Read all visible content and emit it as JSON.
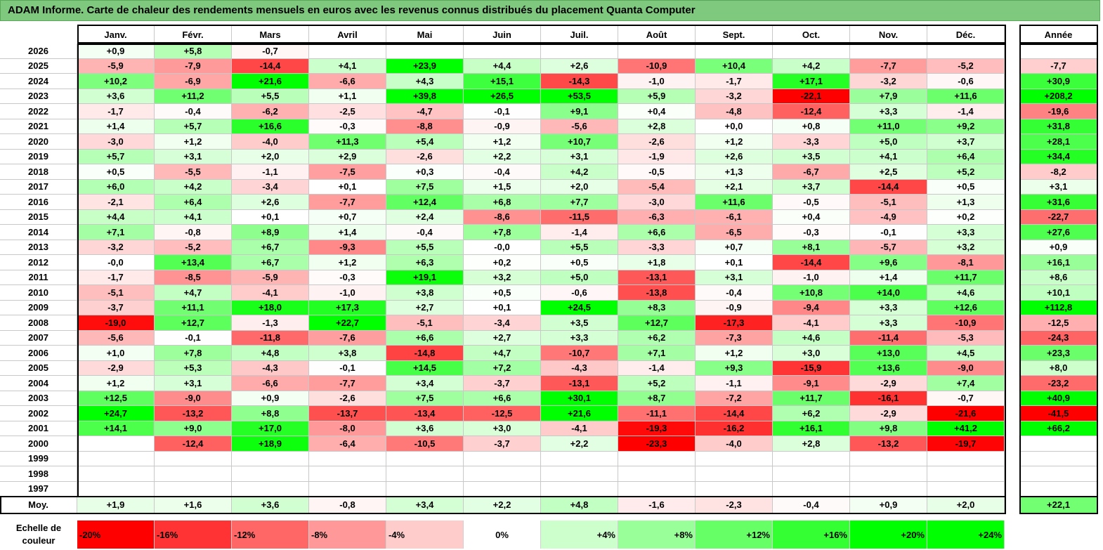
{
  "title": "ADAM Informe. Carte de chaleur des rendements mensuels en euros avec les revenus connus distribués du placement Quanta Computer",
  "chart_data": {
    "type": "heatmap",
    "months": [
      "Janv.",
      "Févr.",
      "Mars",
      "Avril",
      "Mai",
      "Juin",
      "Juil.",
      "Août",
      "Sept.",
      "Oct.",
      "Nov.",
      "Déc."
    ],
    "year_header": "Année",
    "rows": [
      {
        "year": "2026",
        "values": [
          "+0,9",
          "+5,8",
          "-0,7",
          "",
          "",
          "",
          "",
          "",
          "",
          "",
          "",
          ""
        ],
        "annual": ""
      },
      {
        "year": "2025",
        "values": [
          "-5,9",
          "-7,9",
          "-14,4",
          "+4,1",
          "+23,9",
          "+4,4",
          "+2,6",
          "-10,9",
          "+10,4",
          "+4,2",
          "-7,7",
          "-5,2"
        ],
        "annual": "-7,7"
      },
      {
        "year": "2024",
        "values": [
          "+10,2",
          "-6,9",
          "+21,6",
          "-6,6",
          "+4,3",
          "+15,1",
          "-14,3",
          "-1,0",
          "-1,7",
          "+17,1",
          "-3,2",
          "-0,6"
        ],
        "annual": "+30,9"
      },
      {
        "year": "2023",
        "values": [
          "+3,6",
          "+11,2",
          "+5,5",
          "+1,1",
          "+39,8",
          "+26,5",
          "+53,5",
          "+5,9",
          "-3,2",
          "-22,1",
          "+7,9",
          "+11,6"
        ],
        "annual": "+208,2"
      },
      {
        "year": "2022",
        "values": [
          "-1,7",
          "-0,4",
          "-6,2",
          "-2,5",
          "-4,7",
          "-0,1",
          "+9,1",
          "+0,4",
          "-4,8",
          "-12,4",
          "+3,3",
          "-1,4"
        ],
        "annual": "-19,6"
      },
      {
        "year": "2021",
        "values": [
          "+1,4",
          "+5,7",
          "+16,6",
          "-0,3",
          "-8,8",
          "-0,9",
          "-5,6",
          "+2,8",
          "+0,0",
          "+0,8",
          "+11,0",
          "+9,2"
        ],
        "annual": "+31,8"
      },
      {
        "year": "2020",
        "values": [
          "-3,0",
          "+1,2",
          "-4,0",
          "+11,3",
          "+5,4",
          "+1,2",
          "+10,7",
          "-2,6",
          "+1,2",
          "-3,3",
          "+5,0",
          "+3,7"
        ],
        "annual": "+28,1"
      },
      {
        "year": "2019",
        "values": [
          "+5,7",
          "+3,1",
          "+2,0",
          "+2,9",
          "-2,6",
          "+2,2",
          "+3,1",
          "-1,9",
          "+2,6",
          "+3,5",
          "+4,1",
          "+6,4"
        ],
        "annual": "+34,4"
      },
      {
        "year": "2018",
        "values": [
          "+0,5",
          "-5,5",
          "-1,1",
          "-7,5",
          "+0,3",
          "-0,4",
          "+4,2",
          "-0,5",
          "+1,3",
          "-6,7",
          "+2,5",
          "+5,2"
        ],
        "annual": "-8,2"
      },
      {
        "year": "2017",
        "values": [
          "+6,0",
          "+4,2",
          "-3,4",
          "+0,1",
          "+7,5",
          "+1,5",
          "+2,0",
          "-5,4",
          "+2,1",
          "+3,7",
          "-14,4",
          "+0,5"
        ],
        "annual": "+3,1"
      },
      {
        "year": "2016",
        "values": [
          "-2,1",
          "+6,4",
          "+2,6",
          "-7,7",
          "+12,4",
          "+6,8",
          "+7,7",
          "-3,0",
          "+11,6",
          "-0,5",
          "-5,1",
          "+1,3"
        ],
        "annual": "+31,6"
      },
      {
        "year": "2015",
        "values": [
          "+4,4",
          "+4,1",
          "+0,1",
          "+0,7",
          "+2,4",
          "-8,6",
          "-11,5",
          "-6,3",
          "-6,1",
          "+0,4",
          "-4,9",
          "+0,2"
        ],
        "annual": "-22,7"
      },
      {
        "year": "2014",
        "values": [
          "+7,1",
          "-0,8",
          "+8,9",
          "+1,4",
          "-0,4",
          "+7,8",
          "-1,4",
          "+6,6",
          "-6,5",
          "-0,3",
          "-0,1",
          "+3,3"
        ],
        "annual": "+27,6"
      },
      {
        "year": "2013",
        "values": [
          "-3,2",
          "-5,2",
          "+6,7",
          "-9,3",
          "+5,5",
          "-0,0",
          "+5,5",
          "-3,3",
          "+0,7",
          "+8,1",
          "-5,7",
          "+3,2"
        ],
        "annual": "+0,9"
      },
      {
        "year": "2012",
        "values": [
          "-0,0",
          "+13,4",
          "+6,7",
          "+1,2",
          "+6,3",
          "+0,2",
          "+0,5",
          "+1,8",
          "+0,1",
          "-14,4",
          "+9,6",
          "-8,1"
        ],
        "annual": "+16,1"
      },
      {
        "year": "2011",
        "values": [
          "-1,7",
          "-8,5",
          "-5,9",
          "-0,3",
          "+19,1",
          "+3,2",
          "+5,0",
          "-13,1",
          "+3,1",
          "-1,0",
          "+1,4",
          "+11,7"
        ],
        "annual": "+8,6"
      },
      {
        "year": "2010",
        "values": [
          "-5,1",
          "+4,7",
          "-4,1",
          "-1,0",
          "+3,8",
          "+0,5",
          "-0,6",
          "-13,8",
          "-0,4",
          "+10,8",
          "+14,0",
          "+4,6"
        ],
        "annual": "+10,1"
      },
      {
        "year": "2009",
        "values": [
          "-3,7",
          "+11,1",
          "+18,0",
          "+17,3",
          "+2,7",
          "+0,1",
          "+24,5",
          "+8,3",
          "-0,9",
          "-9,4",
          "+3,3",
          "+12,6"
        ],
        "annual": "+112,8"
      },
      {
        "year": "2008",
        "values": [
          "-19,0",
          "+12,7",
          "-1,3",
          "+22,7",
          "-5,1",
          "-3,4",
          "+3,5",
          "+12,7",
          "-17,3",
          "-4,1",
          "+3,3",
          "-10,9"
        ],
        "annual": "-12,5"
      },
      {
        "year": "2007",
        "values": [
          "-5,6",
          "-0,1",
          "-11,8",
          "-7,6",
          "+6,6",
          "+2,7",
          "+3,3",
          "+6,2",
          "-7,3",
          "+4,6",
          "-11,4",
          "-5,3"
        ],
        "annual": "-24,3"
      },
      {
        "year": "2006",
        "values": [
          "+1,0",
          "+7,8",
          "+4,8",
          "+3,8",
          "-14,8",
          "+4,7",
          "-10,7",
          "+7,1",
          "+1,2",
          "+3,0",
          "+13,0",
          "+4,5"
        ],
        "annual": "+23,3"
      },
      {
        "year": "2005",
        "values": [
          "-2,9",
          "+5,3",
          "-4,3",
          "-0,1",
          "+14,5",
          "+7,2",
          "-4,3",
          "-1,4",
          "+9,3",
          "-15,9",
          "+13,6",
          "-9,0"
        ],
        "annual": "+8,0"
      },
      {
        "year": "2004",
        "values": [
          "+1,2",
          "+3,1",
          "-6,6",
          "-7,7",
          "+3,4",
          "-3,7",
          "-13,1",
          "+5,2",
          "-1,1",
          "-9,1",
          "-2,9",
          "+7,4"
        ],
        "annual": "-23,2"
      },
      {
        "year": "2003",
        "values": [
          "+12,5",
          "-9,0",
          "+0,9",
          "-2,6",
          "+7,5",
          "+6,6",
          "+30,1",
          "+8,7",
          "-7,2",
          "+11,7",
          "-16,1",
          "-0,7"
        ],
        "annual": "+40,9"
      },
      {
        "year": "2002",
        "values": [
          "+24,7",
          "-13,2",
          "+8,8",
          "-13,7",
          "-13,4",
          "-12,5",
          "+21,6",
          "-11,1",
          "-14,4",
          "+6,2",
          "-2,9",
          "-21,6"
        ],
        "annual": "-41,5"
      },
      {
        "year": "2001",
        "values": [
          "+14,1",
          "+9,0",
          "+17,0",
          "-8,0",
          "+3,6",
          "+3,0",
          "-4,1",
          "-19,3",
          "-16,2",
          "+16,1",
          "+9,8",
          "+41,2"
        ],
        "annual": "+66,2"
      },
      {
        "year": "2000",
        "values": [
          "",
          "-12,4",
          "+18,9",
          "-6,4",
          "-10,5",
          "-3,7",
          "+2,2",
          "-23,3",
          "-4,0",
          "+2,8",
          "-13,2",
          "-19,7"
        ],
        "annual": ""
      },
      {
        "year": "1999",
        "values": [
          "",
          "",
          "",
          "",
          "",
          "",
          "",
          "",
          "",
          "",
          "",
          ""
        ],
        "annual": ""
      },
      {
        "year": "1998",
        "values": [
          "",
          "",
          "",
          "",
          "",
          "",
          "",
          "",
          "",
          "",
          "",
          ""
        ],
        "annual": ""
      },
      {
        "year": "1997",
        "values": [
          "",
          "",
          "",
          "",
          "",
          "",
          "",
          "",
          "",
          "",
          "",
          ""
        ],
        "annual": ""
      }
    ],
    "average": {
      "label": "Moy.",
      "values": [
        "+1,9",
        "+1,6",
        "+3,6",
        "-0,8",
        "+3,4",
        "+2,2",
        "+4,8",
        "-1,6",
        "-2,3",
        "-0,4",
        "+0,9",
        "+2,0"
      ],
      "annual": "+22,1"
    },
    "scale": {
      "label": "Echelle de couleur",
      "items": [
        "-20%",
        "-16%",
        "-12%",
        "-8%",
        "-4%",
        "0%",
        "+4%",
        "+8%",
        "+12%",
        "+16%",
        "+20%",
        "+24%"
      ]
    },
    "colors": {
      "negative": "#ff0000",
      "neutral": "#ffffff",
      "positive": "#00ff00"
    }
  }
}
